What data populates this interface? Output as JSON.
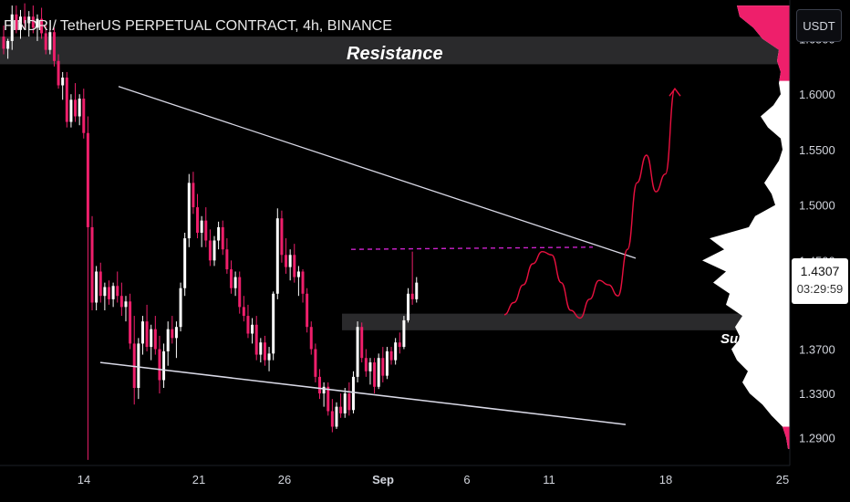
{
  "title": "FINDRI/ TetherUS PERPETUAL CONTRACT, 4h, BINANCE",
  "currency": "USDT",
  "last_price": "1.4307",
  "countdown": "03:29:59",
  "colors": {
    "background": "#000000",
    "down_candle": "#ee1f6b",
    "up_candle": "#ffffff",
    "zone": "#2a2a2c",
    "projection": "#e8103f",
    "dashed_level": "#cc22cc",
    "trendline": "#d9d9e6"
  },
  "zones": {
    "resistance": {
      "label": "Resistance",
      "from": 1.627,
      "to": 1.652
    },
    "support": {
      "label": "Sup",
      "from": 1.387,
      "to": 1.402
    }
  },
  "chart_data": {
    "type": "candlestick",
    "title": "FINDRI/ TetherUS PERPETUAL CONTRACT, 4h, BINANCE",
    "xlabel": "",
    "ylabel": "",
    "x_ticks": [
      "14",
      "21",
      "26",
      "Sep",
      "6",
      "11",
      "18",
      "25"
    ],
    "y_ticks": [
      "1.6500",
      "1.6000",
      "1.5500",
      "1.5000",
      "1.4500",
      "1.3700",
      "1.3300",
      "1.2900"
    ],
    "ylim": [
      1.265,
      1.685
    ],
    "series": [
      {
        "type": "candles",
        "ohlc": [
          [
            1.652,
            1.662,
            1.636,
            1.641
          ],
          [
            1.641,
            1.65,
            1.632,
            1.648
          ],
          [
            1.648,
            1.68,
            1.64,
            1.672
          ],
          [
            1.672,
            1.68,
            1.655,
            1.658
          ],
          [
            1.658,
            1.676,
            1.65,
            1.67
          ],
          [
            1.67,
            1.682,
            1.66,
            1.664
          ],
          [
            1.664,
            1.675,
            1.652,
            1.67
          ],
          [
            1.67,
            1.68,
            1.655,
            1.66
          ],
          [
            1.66,
            1.672,
            1.648,
            1.668
          ],
          [
            1.668,
            1.678,
            1.65,
            1.655
          ],
          [
            1.655,
            1.662,
            1.636,
            1.64
          ],
          [
            1.64,
            1.66,
            1.636,
            1.656
          ],
          [
            1.656,
            1.66,
            1.625,
            1.63
          ],
          [
            1.63,
            1.636,
            1.605,
            1.608
          ],
          [
            1.608,
            1.62,
            1.595,
            1.615
          ],
          [
            1.615,
            1.62,
            1.57,
            1.575
          ],
          [
            1.575,
            1.6,
            1.57,
            1.595
          ],
          [
            1.595,
            1.61,
            1.575,
            1.58
          ],
          [
            1.58,
            1.6,
            1.572,
            1.596
          ],
          [
            1.596,
            1.605,
            1.56,
            1.565
          ],
          [
            1.565,
            1.58,
            1.27,
            1.48
          ],
          [
            1.48,
            1.49,
            1.405,
            1.412
          ],
          [
            1.412,
            1.445,
            1.405,
            1.44
          ],
          [
            1.44,
            1.448,
            1.412,
            1.418
          ],
          [
            1.418,
            1.43,
            1.405,
            1.426
          ],
          [
            1.426,
            1.432,
            1.41,
            1.415
          ],
          [
            1.415,
            1.43,
            1.408,
            1.427
          ],
          [
            1.427,
            1.44,
            1.412,
            1.418
          ],
          [
            1.418,
            1.43,
            1.4,
            1.408
          ],
          [
            1.408,
            1.418,
            1.395,
            1.413
          ],
          [
            1.413,
            1.42,
            1.37,
            1.375
          ],
          [
            1.375,
            1.4,
            1.32,
            1.335
          ],
          [
            1.335,
            1.38,
            1.325,
            1.375
          ],
          [
            1.375,
            1.4,
            1.365,
            1.395
          ],
          [
            1.395,
            1.41,
            1.368,
            1.372
          ],
          [
            1.372,
            1.392,
            1.36,
            1.388
          ],
          [
            1.388,
            1.4,
            1.365,
            1.37
          ],
          [
            1.37,
            1.382,
            1.33,
            1.342
          ],
          [
            1.342,
            1.375,
            1.335,
            1.368
          ],
          [
            1.368,
            1.395,
            1.355,
            1.388
          ],
          [
            1.388,
            1.4,
            1.375,
            1.38
          ],
          [
            1.38,
            1.395,
            1.362,
            1.39
          ],
          [
            1.39,
            1.43,
            1.386,
            1.425
          ],
          [
            1.425,
            1.475,
            1.418,
            1.47
          ],
          [
            1.47,
            1.528,
            1.462,
            1.52
          ],
          [
            1.52,
            1.53,
            1.492,
            1.498
          ],
          [
            1.498,
            1.51,
            1.47,
            1.475
          ],
          [
            1.475,
            1.49,
            1.462,
            1.486
          ],
          [
            1.486,
            1.498,
            1.462,
            1.468
          ],
          [
            1.468,
            1.478,
            1.445,
            1.45
          ],
          [
            1.45,
            1.472,
            1.445,
            1.468
          ],
          [
            1.468,
            1.485,
            1.46,
            1.48
          ],
          [
            1.48,
            1.486,
            1.455,
            1.46
          ],
          [
            1.46,
            1.47,
            1.438,
            1.442
          ],
          [
            1.442,
            1.45,
            1.42,
            1.425
          ],
          [
            1.425,
            1.44,
            1.418,
            1.435
          ],
          [
            1.435,
            1.44,
            1.402,
            1.408
          ],
          [
            1.408,
            1.418,
            1.395,
            1.4
          ],
          [
            1.4,
            1.41,
            1.38,
            1.384
          ],
          [
            1.384,
            1.398,
            1.375,
            1.392
          ],
          [
            1.392,
            1.4,
            1.36,
            1.365
          ],
          [
            1.365,
            1.38,
            1.358,
            1.376
          ],
          [
            1.376,
            1.382,
            1.355,
            1.36
          ],
          [
            1.36,
            1.372,
            1.35,
            1.366
          ],
          [
            1.366,
            1.422,
            1.36,
            1.42
          ],
          [
            1.42,
            1.497,
            1.415,
            1.488
          ],
          [
            1.488,
            1.495,
            1.448,
            1.455
          ],
          [
            1.455,
            1.47,
            1.438,
            1.444
          ],
          [
            1.444,
            1.46,
            1.432,
            1.455
          ],
          [
            1.455,
            1.465,
            1.43,
            1.435
          ],
          [
            1.435,
            1.445,
            1.418,
            1.44
          ],
          [
            1.44,
            1.442,
            1.412,
            1.42
          ],
          [
            1.42,
            1.425,
            1.385,
            1.39
          ],
          [
            1.39,
            1.395,
            1.365,
            1.37
          ],
          [
            1.37,
            1.375,
            1.34,
            1.345
          ],
          [
            1.345,
            1.352,
            1.325,
            1.33
          ],
          [
            1.33,
            1.34,
            1.318,
            1.336
          ],
          [
            1.336,
            1.34,
            1.31,
            1.314
          ],
          [
            1.314,
            1.325,
            1.295,
            1.3
          ],
          [
            1.3,
            1.322,
            1.298,
            1.318
          ],
          [
            1.318,
            1.33,
            1.308,
            1.312
          ],
          [
            1.312,
            1.335,
            1.308,
            1.33
          ],
          [
            1.33,
            1.34,
            1.31,
            1.315
          ],
          [
            1.315,
            1.35,
            1.312,
            1.345
          ],
          [
            1.345,
            1.395,
            1.34,
            1.39
          ],
          [
            1.39,
            1.394,
            1.358,
            1.362
          ],
          [
            1.362,
            1.37,
            1.345,
            1.35
          ],
          [
            1.35,
            1.362,
            1.338,
            1.358
          ],
          [
            1.358,
            1.362,
            1.33,
            1.336
          ],
          [
            1.336,
            1.366,
            1.334,
            1.362
          ],
          [
            1.362,
            1.372,
            1.34,
            1.346
          ],
          [
            1.346,
            1.372,
            1.343,
            1.368
          ],
          [
            1.368,
            1.372,
            1.356,
            1.36
          ],
          [
            1.36,
            1.38,
            1.356,
            1.376
          ],
          [
            1.376,
            1.385,
            1.366,
            1.372
          ],
          [
            1.372,
            1.4,
            1.37,
            1.396
          ],
          [
            1.396,
            1.425,
            1.394,
            1.42
          ],
          [
            1.42,
            1.458,
            1.41,
            1.415
          ],
          [
            1.415,
            1.435,
            1.412,
            1.43
          ]
        ]
      },
      {
        "type": "line",
        "name": "",
        "points": [
          [
            1.607,
            1.602
          ],
          [
            1.345,
            1.452
          ]
        ]
      },
      {
        "type": "line",
        "name": "",
        "points": [
          [
            1.358,
            1.353
          ],
          [
            1.296,
            1.302
          ]
        ]
      },
      {
        "type": "line",
        "name": "",
        "points": [
          [
            1.46,
            1.462
          ],
          [
            1.46,
            1.462
          ]
        ]
      },
      {
        "type": "projection",
        "name": "",
        "values": [
          1.401,
          1.412,
          1.428,
          1.447,
          1.458,
          1.455,
          1.43,
          1.405,
          1.398,
          1.415,
          1.432,
          1.428,
          1.418,
          1.46,
          1.52,
          1.545,
          1.512,
          1.528,
          1.605
        ]
      }
    ],
    "volume_profile_range": [
      1.265,
      1.685
    ],
    "grid": false,
    "legend": "none"
  }
}
